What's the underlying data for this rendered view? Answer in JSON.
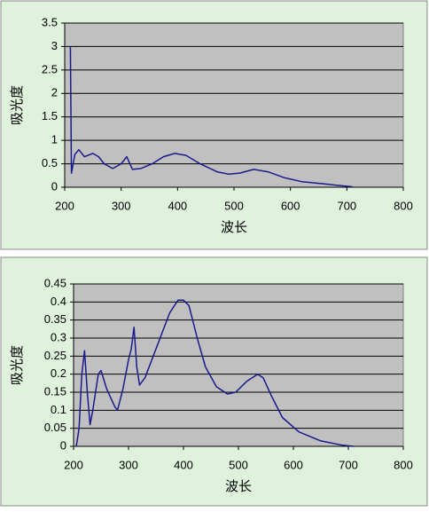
{
  "chart_data": [
    {
      "type": "line",
      "xlabel": "波长",
      "ylabel": "吸光度",
      "x": [
        210,
        212,
        218,
        225,
        235,
        250,
        260,
        270,
        285,
        300,
        310,
        320,
        335,
        355,
        375,
        395,
        415,
        440,
        470,
        490,
        510,
        535,
        560,
        590,
        620,
        660,
        700,
        710
      ],
      "values": [
        3,
        0.3,
        0.7,
        0.8,
        0.65,
        0.72,
        0.65,
        0.5,
        0.4,
        0.5,
        0.65,
        0.38,
        0.4,
        0.5,
        0.65,
        0.72,
        0.68,
        0.5,
        0.33,
        0.28,
        0.3,
        0.38,
        0.33,
        0.2,
        0.12,
        0.07,
        0.02,
        0.01
      ],
      "color": "#1a1a8c",
      "xlim": [
        200,
        800
      ],
      "xticks": [
        200,
        300,
        400,
        500,
        600,
        700,
        800
      ],
      "ylim": [
        0,
        3.5
      ],
      "yticks": [
        0,
        0.5,
        1,
        1.5,
        2,
        2.5,
        3,
        3.5
      ],
      "grid": true
    },
    {
      "type": "line",
      "xlabel": "波长",
      "ylabel": "吸光度",
      "x": [
        205,
        210,
        215,
        220,
        225,
        230,
        235,
        245,
        250,
        260,
        275,
        280,
        290,
        300,
        305,
        310,
        315,
        320,
        330,
        345,
        360,
        375,
        390,
        400,
        410,
        425,
        440,
        460,
        480,
        495,
        515,
        535,
        545,
        560,
        580,
        610,
        650,
        690,
        710
      ],
      "values": [
        0,
        0.05,
        0.2,
        0.265,
        0.15,
        0.06,
        0.1,
        0.2,
        0.21,
        0.16,
        0.11,
        0.1,
        0.16,
        0.24,
        0.27,
        0.33,
        0.22,
        0.17,
        0.19,
        0.25,
        0.31,
        0.37,
        0.405,
        0.405,
        0.39,
        0.3,
        0.22,
        0.165,
        0.145,
        0.15,
        0.18,
        0.2,
        0.19,
        0.14,
        0.08,
        0.04,
        0.015,
        0.003,
        0
      ],
      "color": "#1a1a8c",
      "xlim": [
        200,
        800
      ],
      "xticks": [
        200,
        300,
        400,
        500,
        600,
        700,
        800
      ],
      "ylim": [
        0,
        0.45
      ],
      "yticks": [
        0,
        0.05,
        0.1,
        0.15,
        0.2,
        0.25,
        0.3,
        0.35,
        0.4,
        0.45
      ],
      "grid": true
    }
  ]
}
